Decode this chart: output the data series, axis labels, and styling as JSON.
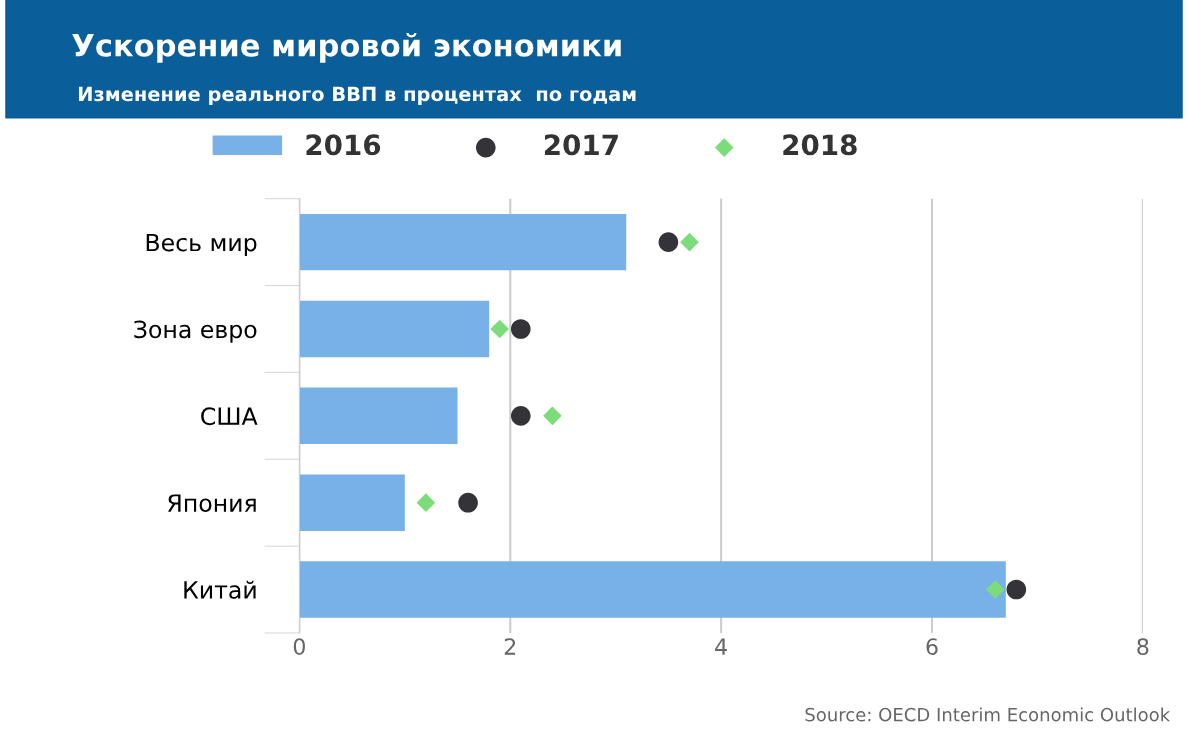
{
  "chart_data": {
    "type": "bar",
    "orientation": "horizontal",
    "title": "Ускорение мировой экономики",
    "subtitle": "Изменение реального ВВП в процентах  по годам",
    "categories": [
      "Весь мир",
      "Зона евро",
      "США",
      "Япония",
      "Китай"
    ],
    "series": [
      {
        "name": "2016",
        "color": "#78b0e8",
        "values": [
          3.1,
          1.8,
          1.5,
          1.0,
          6.7
        ]
      },
      {
        "name": "2017",
        "type": "scatter",
        "marker": "circle",
        "color": "#333338",
        "values": [
          3.5,
          2.1,
          2.1,
          1.6,
          6.8
        ]
      },
      {
        "name": "2018",
        "type": "scatter",
        "marker": "diamond",
        "color": "#7ddc7a",
        "values": [
          3.7,
          1.9,
          2.4,
          1.2,
          6.6
        ]
      }
    ],
    "xlim": [
      0,
      8
    ],
    "xticks": [
      0,
      2,
      4,
      6,
      8
    ],
    "grid": "x",
    "legend": "top",
    "annotations": [
      "Source: OECD Interim Economic Outlook"
    ]
  }
}
